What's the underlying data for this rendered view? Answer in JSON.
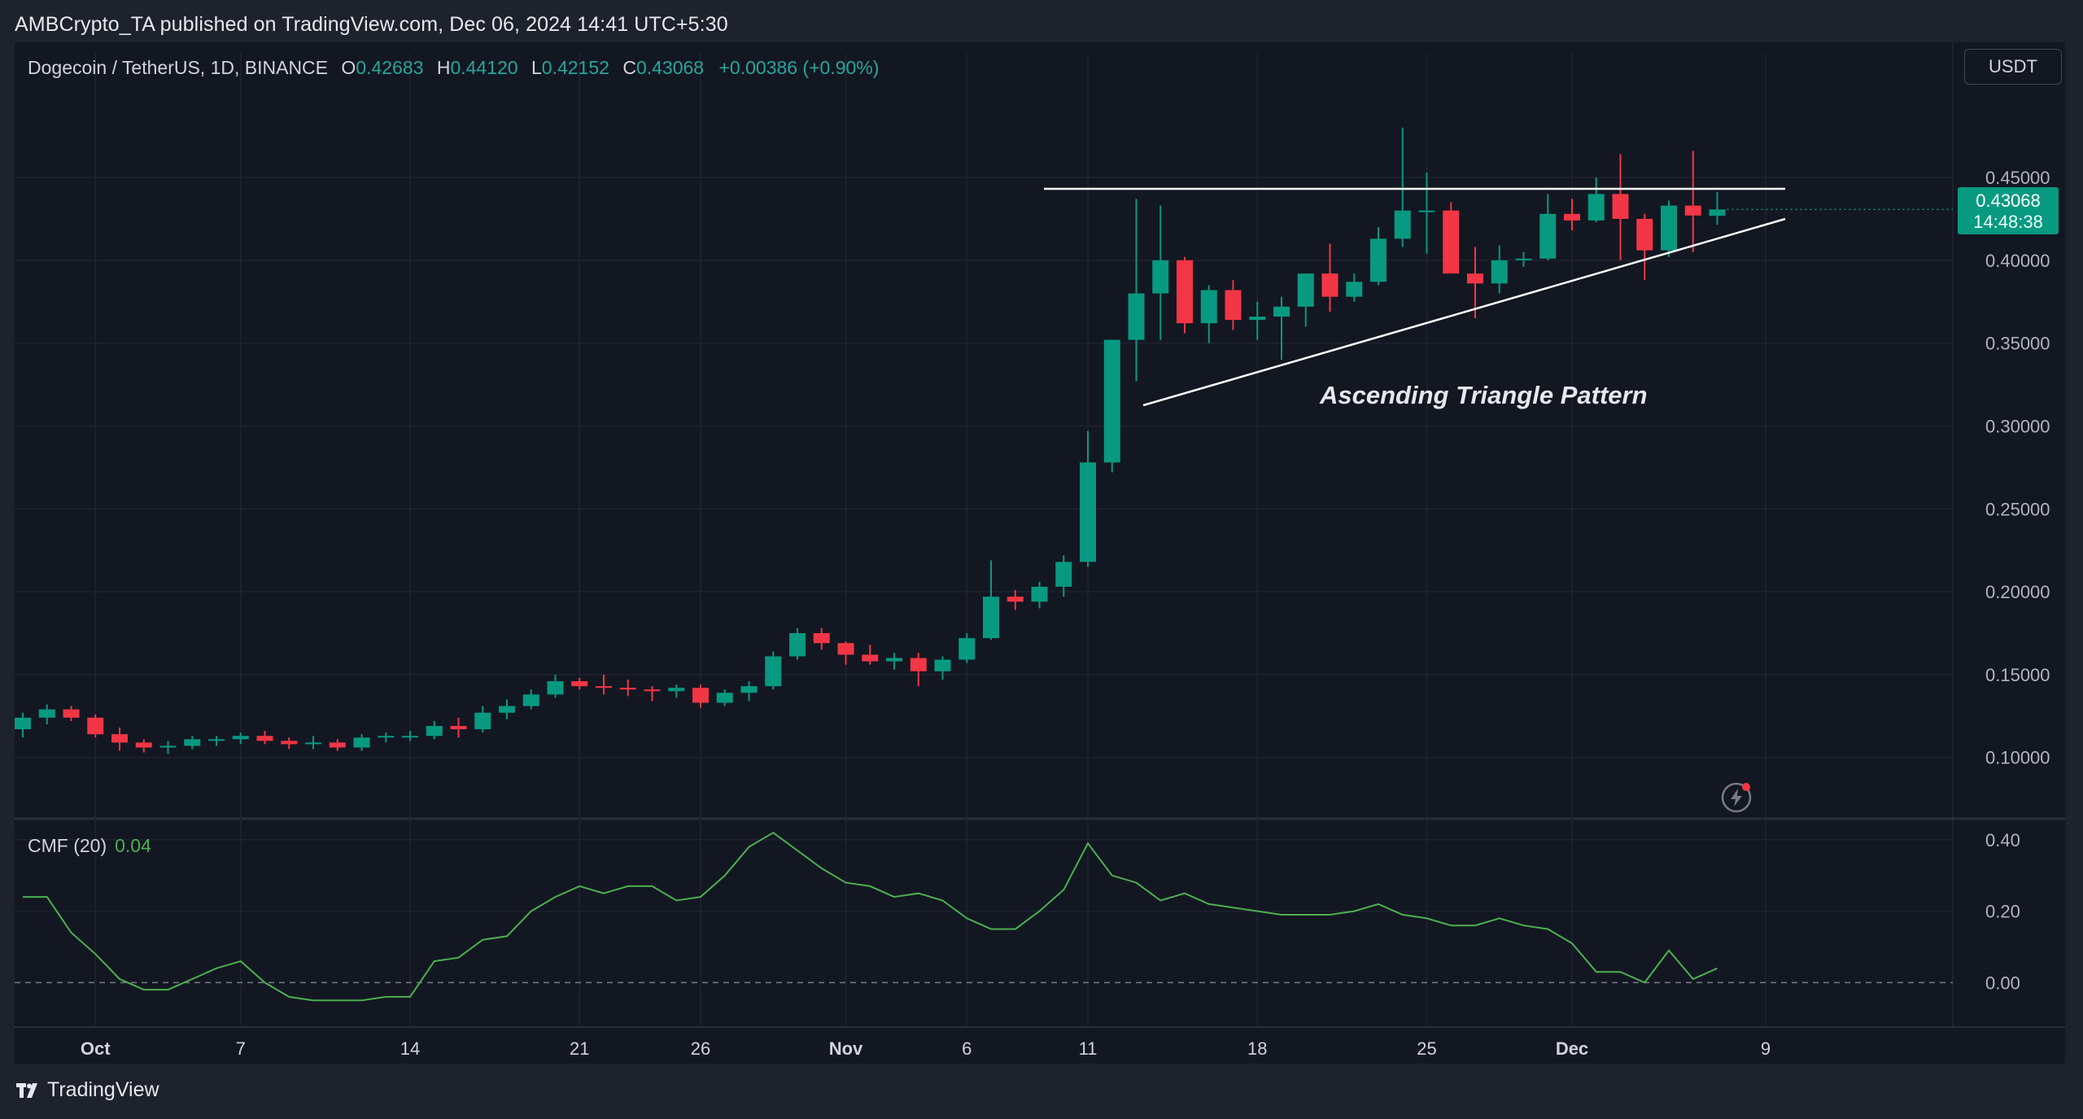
{
  "publisher": "AMBCrypto_TA published on TradingView.com, Dec 06, 2024 14:41 UTC+5:30",
  "legend": {
    "symbol": "Dogecoin / TetherUS, 1D, BINANCE",
    "o_label": "O",
    "o_value": "0.42683",
    "h_label": "H",
    "h_value": "0.44120",
    "l_label": "L",
    "l_value": "0.42152",
    "c_label": "C",
    "c_value": "0.43068",
    "change": "+0.00386 (+0.90%)"
  },
  "currency_button": "USDT",
  "last_price": {
    "price": "0.43068",
    "countdown": "14:48:38"
  },
  "annotation": "Ascending Triangle Pattern",
  "cmf_legend": {
    "label": "CMF (20)",
    "value": "0.04"
  },
  "brand": "TradingView",
  "icons": {
    "alert": "lightning-alert-icon",
    "logo": "tradingview-logo-icon"
  },
  "colors": {
    "up": "#089981",
    "down": "#f23645",
    "cmf": "#4caf50",
    "background": "#131722"
  },
  "chart_data": [
    {
      "type": "candlestick",
      "title": "Dogecoin / TetherUS, 1D, BINANCE",
      "y_ticks": [
        "0.45000",
        "0.40000",
        "0.35000",
        "0.30000",
        "0.25000",
        "0.20000",
        "0.15000",
        "0.10000"
      ],
      "ylim": [
        0.065,
        0.505
      ],
      "x_ticks": [
        "Oct",
        "7",
        "14",
        "21",
        "26",
        "Nov",
        "6",
        "11",
        "18",
        "25",
        "Dec",
        "9"
      ],
      "candles_ohlc": [
        [
          0.117,
          0.127,
          0.112,
          0.124
        ],
        [
          0.124,
          0.132,
          0.12,
          0.129
        ],
        [
          0.129,
          0.131,
          0.122,
          0.124
        ],
        [
          0.124,
          0.126,
          0.112,
          0.114
        ],
        [
          0.114,
          0.118,
          0.104,
          0.109
        ],
        [
          0.109,
          0.111,
          0.103,
          0.106
        ],
        [
          0.106,
          0.11,
          0.102,
          0.107
        ],
        [
          0.107,
          0.113,
          0.105,
          0.111
        ],
        [
          0.111,
          0.113,
          0.107,
          0.111
        ],
        [
          0.111,
          0.115,
          0.108,
          0.113
        ],
        [
          0.113,
          0.116,
          0.108,
          0.11
        ],
        [
          0.11,
          0.112,
          0.105,
          0.108
        ],
        [
          0.108,
          0.113,
          0.105,
          0.109
        ],
        [
          0.109,
          0.111,
          0.104,
          0.106
        ],
        [
          0.106,
          0.114,
          0.104,
          0.112
        ],
        [
          0.112,
          0.115,
          0.109,
          0.113
        ],
        [
          0.113,
          0.116,
          0.11,
          0.113
        ],
        [
          0.113,
          0.122,
          0.111,
          0.119
        ],
        [
          0.119,
          0.124,
          0.112,
          0.117
        ],
        [
          0.117,
          0.131,
          0.115,
          0.127
        ],
        [
          0.127,
          0.135,
          0.123,
          0.131
        ],
        [
          0.131,
          0.141,
          0.129,
          0.138
        ],
        [
          0.138,
          0.15,
          0.136,
          0.146
        ],
        [
          0.146,
          0.148,
          0.141,
          0.143
        ],
        [
          0.143,
          0.15,
          0.138,
          0.142
        ],
        [
          0.142,
          0.147,
          0.137,
          0.141
        ],
        [
          0.141,
          0.143,
          0.134,
          0.14
        ],
        [
          0.14,
          0.144,
          0.136,
          0.142
        ],
        [
          0.142,
          0.144,
          0.13,
          0.133
        ],
        [
          0.133,
          0.141,
          0.131,
          0.139
        ],
        [
          0.139,
          0.146,
          0.134,
          0.143
        ],
        [
          0.143,
          0.164,
          0.141,
          0.161
        ],
        [
          0.161,
          0.178,
          0.159,
          0.175
        ],
        [
          0.175,
          0.178,
          0.165,
          0.169
        ],
        [
          0.169,
          0.17,
          0.156,
          0.162
        ],
        [
          0.162,
          0.168,
          0.156,
          0.158
        ],
        [
          0.158,
          0.163,
          0.153,
          0.16
        ],
        [
          0.16,
          0.163,
          0.143,
          0.152
        ],
        [
          0.152,
          0.161,
          0.147,
          0.159
        ],
        [
          0.159,
          0.175,
          0.157,
          0.172
        ],
        [
          0.172,
          0.219,
          0.171,
          0.197
        ],
        [
          0.197,
          0.201,
          0.189,
          0.194
        ],
        [
          0.194,
          0.206,
          0.19,
          0.203
        ],
        [
          0.203,
          0.222,
          0.197,
          0.218
        ],
        [
          0.218,
          0.297,
          0.215,
          0.278
        ],
        [
          0.278,
          0.352,
          0.272,
          0.352
        ],
        [
          0.352,
          0.437,
          0.327,
          0.38
        ],
        [
          0.38,
          0.433,
          0.352,
          0.4
        ],
        [
          0.4,
          0.402,
          0.356,
          0.362
        ],
        [
          0.362,
          0.385,
          0.35,
          0.382
        ],
        [
          0.382,
          0.388,
          0.358,
          0.364
        ],
        [
          0.364,
          0.375,
          0.352,
          0.366
        ],
        [
          0.366,
          0.378,
          0.34,
          0.372
        ],
        [
          0.372,
          0.384,
          0.36,
          0.392
        ],
        [
          0.392,
          0.41,
          0.369,
          0.378
        ],
        [
          0.378,
          0.392,
          0.375,
          0.387
        ],
        [
          0.387,
          0.42,
          0.385,
          0.413
        ],
        [
          0.413,
          0.48,
          0.408,
          0.43
        ],
        [
          0.43,
          0.453,
          0.404,
          0.43
        ],
        [
          0.43,
          0.435,
          0.395,
          0.392
        ],
        [
          0.392,
          0.408,
          0.365,
          0.386
        ],
        [
          0.386,
          0.409,
          0.38,
          0.4
        ],
        [
          0.4,
          0.405,
          0.396,
          0.401
        ],
        [
          0.401,
          0.44,
          0.4,
          0.428
        ],
        [
          0.428,
          0.437,
          0.418,
          0.424
        ],
        [
          0.424,
          0.45,
          0.423,
          0.44
        ],
        [
          0.44,
          0.464,
          0.4,
          0.425
        ],
        [
          0.425,
          0.428,
          0.388,
          0.406
        ],
        [
          0.406,
          0.436,
          0.402,
          0.433
        ],
        [
          0.433,
          0.466,
          0.405,
          0.427
        ],
        [
          0.42683,
          0.4412,
          0.42152,
          0.43068
        ]
      ],
      "annotations": [
        "Ascending Triangle Pattern"
      ]
    },
    {
      "type": "line",
      "title": "CMF (20)",
      "y_ticks": [
        "0.40",
        "0.20",
        "0.00"
      ],
      "ylim": [
        -0.12,
        0.45
      ],
      "series": [
        {
          "name": "CMF (20)",
          "values": [
            0.24,
            0.24,
            0.14,
            0.08,
            0.01,
            -0.02,
            -0.02,
            0.01,
            0.04,
            0.06,
            0.0,
            -0.04,
            -0.05,
            -0.05,
            -0.05,
            -0.04,
            -0.04,
            0.06,
            0.07,
            0.12,
            0.13,
            0.2,
            0.24,
            0.27,
            0.25,
            0.27,
            0.27,
            0.23,
            0.24,
            0.3,
            0.38,
            0.42,
            0.37,
            0.32,
            0.28,
            0.27,
            0.24,
            0.25,
            0.23,
            0.18,
            0.15,
            0.15,
            0.2,
            0.26,
            0.39,
            0.3,
            0.28,
            0.23,
            0.25,
            0.22,
            0.21,
            0.2,
            0.19,
            0.19,
            0.19,
            0.2,
            0.22,
            0.19,
            0.18,
            0.16,
            0.16,
            0.18,
            0.16,
            0.15,
            0.11,
            0.03,
            0.03,
            0.0,
            0.09,
            0.01,
            0.04
          ]
        }
      ],
      "zero_line": 0.0
    }
  ]
}
